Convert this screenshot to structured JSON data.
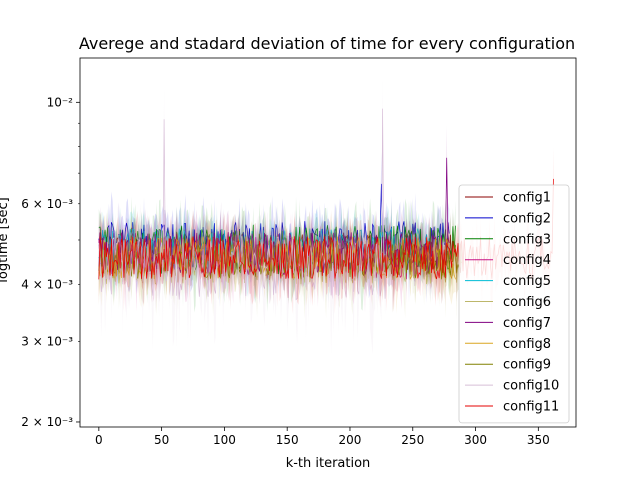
{
  "chart_data": {
    "type": "line",
    "title": "Averege and stadard deviation of time for every configuration",
    "xlabel": "k-th iteration",
    "ylabel": "logtime [sec]",
    "y_scale": "log",
    "xlim": [
      -15,
      380
    ],
    "ylim": [
      0.00195,
      0.0125
    ],
    "grid": false,
    "legend_position": "center-right",
    "x_ticks": [
      0,
      50,
      100,
      150,
      200,
      250,
      300,
      350
    ],
    "x_tick_labels": [
      "0",
      "50",
      "100",
      "150",
      "200",
      "250",
      "300",
      "350"
    ],
    "y_major_ticks": [
      0.002,
      0.01
    ],
    "y_major_tick_labels": [
      "2 × 10⁻³",
      "10⁻²"
    ],
    "y_minor_ticks": [
      0.003,
      0.004,
      0.006
    ],
    "y_minor_tick_labels": [
      "3 × 10⁻³",
      "4 × 10⁻³",
      "6 × 10⁻³"
    ],
    "series": [
      {
        "name": "config1",
        "color": "#8b0000",
        "length": 290,
        "mean": 0.0047,
        "spread": 0.0005
      },
      {
        "name": "config2",
        "color": "#0000cd",
        "length": 280,
        "mean": 0.0049,
        "spread": 0.0006,
        "peaks": [
          [
            225,
            0.0078
          ]
        ]
      },
      {
        "name": "config3",
        "color": "#008000",
        "length": 285,
        "mean": 0.0048,
        "spread": 0.0006
      },
      {
        "name": "config4",
        "color": "#c71585",
        "length": 270,
        "mean": 0.0046,
        "spread": 0.0005
      },
      {
        "name": "config5",
        "color": "#00bcd4",
        "length": 265,
        "mean": 0.0048,
        "spread": 0.0005
      },
      {
        "name": "config6",
        "color": "#bdb76b",
        "length": 290,
        "mean": 0.0045,
        "spread": 0.0005
      },
      {
        "name": "config7",
        "color": "#800080",
        "length": 280,
        "mean": 0.0047,
        "spread": 0.0005,
        "peaks": [
          [
            277,
            0.0089
          ]
        ]
      },
      {
        "name": "config8",
        "color": "#daa520",
        "length": 285,
        "mean": 0.0046,
        "spread": 0.0005
      },
      {
        "name": "config9",
        "color": "#808000",
        "length": 290,
        "mean": 0.0045,
        "spread": 0.0004
      },
      {
        "name": "config10",
        "color": "#d8bfd8",
        "length": 230,
        "mean": 0.0044,
        "spread": 0.0007,
        "peaks": [
          [
            226,
            0.0114
          ],
          [
            52,
            0.0108
          ]
        ]
      },
      {
        "name": "config11",
        "color": "#e60000",
        "length": 363,
        "mean": 0.0046,
        "spread": 0.0005,
        "peaks": [
          [
            362,
            0.008
          ]
        ]
      }
    ]
  }
}
